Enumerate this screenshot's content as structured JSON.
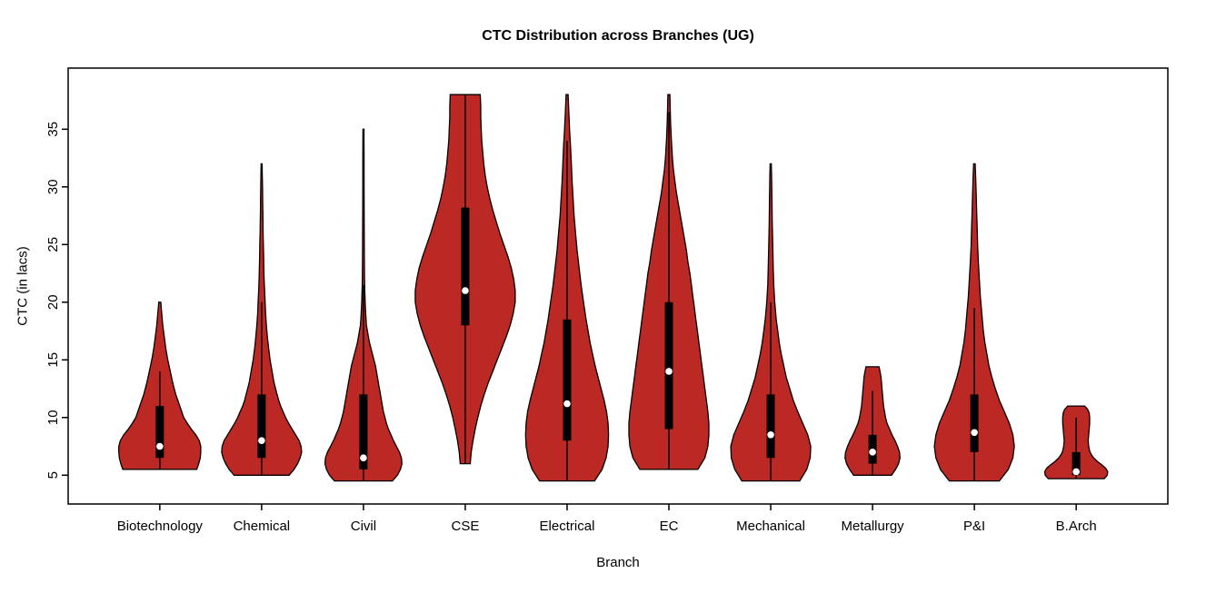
{
  "chart_data": {
    "type": "violin",
    "title": "CTC Distribution across Branches (UG)",
    "xlabel": "Branch",
    "ylabel": "CTC (in lacs)",
    "ylim": [
      2.5,
      40.3
    ],
    "yticks": [
      5,
      10,
      15,
      20,
      25,
      30,
      35
    ],
    "categories": [
      "Biotechnology",
      "Chemical",
      "Civil",
      "CSE",
      "Electrical",
      "EC",
      "Mechanical",
      "Metallurgy",
      "P&I",
      "B.Arch"
    ],
    "colors": {
      "violin_fill": "#bc2823",
      "violin_outline": "#000000",
      "box": "#000000",
      "median_dot": "#ffffff",
      "axis": "#000000"
    },
    "violins": [
      {
        "label": "Biotechnology",
        "q1": 6.5,
        "q3": 11,
        "median": 7.5,
        "whisker": [
          5.5,
          14
        ],
        "shape": [
          [
            5.5,
            0.74
          ],
          [
            6,
            0.78
          ],
          [
            6.5,
            0.81
          ],
          [
            7,
            0.82
          ],
          [
            7.5,
            0.82
          ],
          [
            8,
            0.79
          ],
          [
            8.5,
            0.72
          ],
          [
            9,
            0.63
          ],
          [
            9.5,
            0.55
          ],
          [
            10,
            0.48
          ],
          [
            10.5,
            0.44
          ],
          [
            11,
            0.4
          ],
          [
            11.5,
            0.36
          ],
          [
            12,
            0.32
          ],
          [
            13,
            0.26
          ],
          [
            14,
            0.21
          ],
          [
            15,
            0.16
          ],
          [
            16,
            0.12
          ],
          [
            17,
            0.09
          ],
          [
            18,
            0.06
          ],
          [
            19,
            0.04
          ],
          [
            20,
            0.02
          ]
        ]
      },
      {
        "label": "Chemical",
        "q1": 6.5,
        "q3": 12,
        "median": 8,
        "whisker": [
          5,
          20
        ],
        "shape": [
          [
            5,
            0.55
          ],
          [
            5.5,
            0.65
          ],
          [
            6,
            0.72
          ],
          [
            6.5,
            0.77
          ],
          [
            7,
            0.8
          ],
          [
            7.5,
            0.79
          ],
          [
            8,
            0.75
          ],
          [
            8.5,
            0.68
          ],
          [
            9,
            0.61
          ],
          [
            9.5,
            0.54
          ],
          [
            10,
            0.48
          ],
          [
            10.5,
            0.43
          ],
          [
            11,
            0.38
          ],
          [
            11.5,
            0.34
          ],
          [
            12,
            0.31
          ],
          [
            13,
            0.25
          ],
          [
            14,
            0.21
          ],
          [
            15,
            0.17
          ],
          [
            16,
            0.14
          ],
          [
            17,
            0.115
          ],
          [
            18,
            0.095
          ],
          [
            19,
            0.08
          ],
          [
            20,
            0.07
          ],
          [
            21,
            0.06
          ],
          [
            22,
            0.05
          ],
          [
            23,
            0.045
          ],
          [
            24,
            0.04
          ],
          [
            25,
            0.035
          ],
          [
            26,
            0.03
          ],
          [
            27,
            0.027
          ],
          [
            28,
            0.024
          ],
          [
            29,
            0.021
          ],
          [
            30,
            0.018
          ],
          [
            31,
            0.014
          ],
          [
            32,
            0.01
          ]
        ]
      },
      {
        "label": "Civil",
        "q1": 5.5,
        "q3": 12,
        "median": 6.5,
        "whisker": [
          4.5,
          21.5
        ],
        "shape": [
          [
            4.5,
            0.58
          ],
          [
            5,
            0.68
          ],
          [
            5.5,
            0.74
          ],
          [
            6,
            0.77
          ],
          [
            6.5,
            0.76
          ],
          [
            7,
            0.72
          ],
          [
            7.5,
            0.66
          ],
          [
            8,
            0.6
          ],
          [
            8.5,
            0.55
          ],
          [
            9,
            0.5
          ],
          [
            9.5,
            0.46
          ],
          [
            10,
            0.43
          ],
          [
            10.5,
            0.4
          ],
          [
            11,
            0.38
          ],
          [
            11.5,
            0.36
          ],
          [
            12,
            0.34
          ],
          [
            12.5,
            0.32
          ],
          [
            13,
            0.3
          ],
          [
            13.5,
            0.28
          ],
          [
            14,
            0.26
          ],
          [
            14.5,
            0.24
          ],
          [
            15,
            0.21
          ],
          [
            15.5,
            0.18
          ],
          [
            16,
            0.15
          ],
          [
            16.5,
            0.12
          ],
          [
            17,
            0.1
          ],
          [
            17.5,
            0.08
          ],
          [
            18,
            0.06
          ],
          [
            19,
            0.045
          ],
          [
            20,
            0.035
          ],
          [
            21,
            0.028
          ],
          [
            22,
            0.022
          ],
          [
            24,
            0.018
          ],
          [
            26,
            0.016
          ],
          [
            28,
            0.014
          ],
          [
            30,
            0.013
          ],
          [
            32,
            0.012
          ],
          [
            34,
            0.011
          ],
          [
            35,
            0.01
          ]
        ]
      },
      {
        "label": "CSE",
        "q1": 18,
        "q3": 28.2,
        "median": 21,
        "whisker": [
          6,
          38
        ],
        "shape": [
          [
            6,
            0.1
          ],
          [
            7,
            0.12
          ],
          [
            8,
            0.155
          ],
          [
            9,
            0.2
          ],
          [
            10,
            0.25
          ],
          [
            11,
            0.31
          ],
          [
            12,
            0.38
          ],
          [
            13,
            0.46
          ],
          [
            14,
            0.55
          ],
          [
            15,
            0.64
          ],
          [
            16,
            0.73
          ],
          [
            17,
            0.82
          ],
          [
            18,
            0.9
          ],
          [
            19,
            0.96
          ],
          [
            20,
            1.0
          ],
          [
            21,
            1.0
          ],
          [
            22,
            0.97
          ],
          [
            23,
            0.92
          ],
          [
            24,
            0.85
          ],
          [
            25,
            0.77
          ],
          [
            26,
            0.69
          ],
          [
            27,
            0.62
          ],
          [
            28,
            0.55
          ],
          [
            29,
            0.49
          ],
          [
            30,
            0.44
          ],
          [
            31,
            0.4
          ],
          [
            32,
            0.37
          ],
          [
            33,
            0.35
          ],
          [
            34,
            0.33
          ],
          [
            35,
            0.32
          ],
          [
            36,
            0.31
          ],
          [
            37,
            0.31
          ],
          [
            38,
            0.3
          ]
        ]
      },
      {
        "label": "Electrical",
        "q1": 8,
        "q3": 18.5,
        "median": 11.2,
        "whisker": [
          4.5,
          34
        ],
        "shape": [
          [
            4.5,
            0.55
          ],
          [
            5.5,
            0.7
          ],
          [
            6.5,
            0.78
          ],
          [
            7.5,
            0.82
          ],
          [
            8.5,
            0.83
          ],
          [
            9.5,
            0.82
          ],
          [
            10.5,
            0.79
          ],
          [
            11.5,
            0.74
          ],
          [
            12.5,
            0.68
          ],
          [
            13.5,
            0.62
          ],
          [
            14.5,
            0.56
          ],
          [
            15.5,
            0.51
          ],
          [
            16.5,
            0.46
          ],
          [
            17.5,
            0.42
          ],
          [
            18.5,
            0.38
          ],
          [
            20,
            0.33
          ],
          [
            21.5,
            0.28
          ],
          [
            23,
            0.24
          ],
          [
            24.5,
            0.2
          ],
          [
            26,
            0.17
          ],
          [
            27.5,
            0.14
          ],
          [
            29,
            0.12
          ],
          [
            30.5,
            0.1
          ],
          [
            32,
            0.085
          ],
          [
            33.5,
            0.07
          ],
          [
            35,
            0.05
          ],
          [
            36.5,
            0.035
          ],
          [
            38,
            0.02
          ]
        ]
      },
      {
        "label": "EC",
        "q1": 9,
        "q3": 20,
        "median": 14,
        "whisker": [
          5.5,
          36.5
        ],
        "shape": [
          [
            5.5,
            0.58
          ],
          [
            6.5,
            0.72
          ],
          [
            7.5,
            0.78
          ],
          [
            8.5,
            0.8
          ],
          [
            9.5,
            0.8
          ],
          [
            10.5,
            0.78
          ],
          [
            11.5,
            0.75
          ],
          [
            12.5,
            0.72
          ],
          [
            13.5,
            0.69
          ],
          [
            14.5,
            0.66
          ],
          [
            15.5,
            0.63
          ],
          [
            16.5,
            0.6
          ],
          [
            17.5,
            0.57
          ],
          [
            18.5,
            0.54
          ],
          [
            19.5,
            0.51
          ],
          [
            20.5,
            0.48
          ],
          [
            21.5,
            0.45
          ],
          [
            22.5,
            0.42
          ],
          [
            23.5,
            0.38
          ],
          [
            24.5,
            0.35
          ],
          [
            25.5,
            0.31
          ],
          [
            26.5,
            0.27
          ],
          [
            27.5,
            0.23
          ],
          [
            28.5,
            0.19
          ],
          [
            29.5,
            0.15
          ],
          [
            30.5,
            0.12
          ],
          [
            31.5,
            0.09
          ],
          [
            32.5,
            0.07
          ],
          [
            34,
            0.05
          ],
          [
            35.5,
            0.035
          ],
          [
            37,
            0.025
          ],
          [
            38,
            0.02
          ]
        ]
      },
      {
        "label": "Mechanical",
        "q1": 6.5,
        "q3": 12,
        "median": 8.5,
        "whisker": [
          4.5,
          20
        ],
        "shape": [
          [
            4.5,
            0.58
          ],
          [
            5.5,
            0.72
          ],
          [
            6.5,
            0.79
          ],
          [
            7.5,
            0.8
          ],
          [
            8.5,
            0.74
          ],
          [
            9.5,
            0.64
          ],
          [
            10.5,
            0.54
          ],
          [
            11.5,
            0.45
          ],
          [
            12.5,
            0.38
          ],
          [
            13.5,
            0.31
          ],
          [
            14.5,
            0.26
          ],
          [
            15.5,
            0.21
          ],
          [
            16.5,
            0.17
          ],
          [
            17.5,
            0.14
          ],
          [
            18.5,
            0.11
          ],
          [
            20,
            0.08
          ],
          [
            21.5,
            0.06
          ],
          [
            23,
            0.05
          ],
          [
            25,
            0.04
          ],
          [
            27,
            0.03
          ],
          [
            29,
            0.025
          ],
          [
            31,
            0.018
          ],
          [
            32,
            0.012
          ]
        ]
      },
      {
        "label": "Metallurgy",
        "q1": 6,
        "q3": 8.5,
        "median": 7,
        "whisker": [
          5,
          12.3
        ],
        "shape": [
          [
            5,
            0.38
          ],
          [
            5.5,
            0.46
          ],
          [
            6,
            0.52
          ],
          [
            6.5,
            0.55
          ],
          [
            7,
            0.54
          ],
          [
            7.5,
            0.5
          ],
          [
            8,
            0.45
          ],
          [
            8.5,
            0.39
          ],
          [
            9,
            0.34
          ],
          [
            9.5,
            0.29
          ],
          [
            10,
            0.26
          ],
          [
            10.5,
            0.24
          ],
          [
            11,
            0.22
          ],
          [
            11.5,
            0.21
          ],
          [
            12,
            0.2
          ],
          [
            12.5,
            0.19
          ],
          [
            13,
            0.18
          ],
          [
            13.5,
            0.17
          ],
          [
            14,
            0.15
          ],
          [
            14.4,
            0.13
          ]
        ]
      },
      {
        "label": "P&I",
        "q1": 7,
        "q3": 12,
        "median": 8.7,
        "whisker": [
          4.5,
          19.5
        ],
        "shape": [
          [
            4.5,
            0.5
          ],
          [
            5.5,
            0.68
          ],
          [
            6.5,
            0.77
          ],
          [
            7.5,
            0.8
          ],
          [
            8.5,
            0.77
          ],
          [
            9.5,
            0.7
          ],
          [
            10.5,
            0.6
          ],
          [
            11.5,
            0.5
          ],
          [
            12.5,
            0.42
          ],
          [
            13.5,
            0.35
          ],
          [
            14.5,
            0.29
          ],
          [
            15.5,
            0.25
          ],
          [
            16.5,
            0.21
          ],
          [
            17.5,
            0.18
          ],
          [
            18.5,
            0.16
          ],
          [
            19.5,
            0.14
          ],
          [
            20.5,
            0.12
          ],
          [
            22,
            0.1
          ],
          [
            23.5,
            0.08
          ],
          [
            25,
            0.065
          ],
          [
            26.5,
            0.055
          ],
          [
            28,
            0.045
          ],
          [
            29.5,
            0.035
          ],
          [
            31,
            0.025
          ],
          [
            32,
            0.015
          ]
        ]
      },
      {
        "label": "B.Arch",
        "q1": 5,
        "q3": 7,
        "median": 5.3,
        "whisker": [
          4.7,
          10
        ],
        "shape": [
          [
            4.7,
            0.56
          ],
          [
            5,
            0.62
          ],
          [
            5.3,
            0.63
          ],
          [
            5.6,
            0.59
          ],
          [
            5.9,
            0.51
          ],
          [
            6.2,
            0.42
          ],
          [
            6.5,
            0.35
          ],
          [
            6.8,
            0.3
          ],
          [
            7.1,
            0.27
          ],
          [
            7.5,
            0.25
          ],
          [
            8,
            0.24
          ],
          [
            8.5,
            0.25
          ],
          [
            9,
            0.26
          ],
          [
            9.5,
            0.27
          ],
          [
            10,
            0.27
          ],
          [
            10.4,
            0.26
          ],
          [
            10.7,
            0.23
          ],
          [
            11,
            0.17
          ]
        ]
      }
    ]
  }
}
